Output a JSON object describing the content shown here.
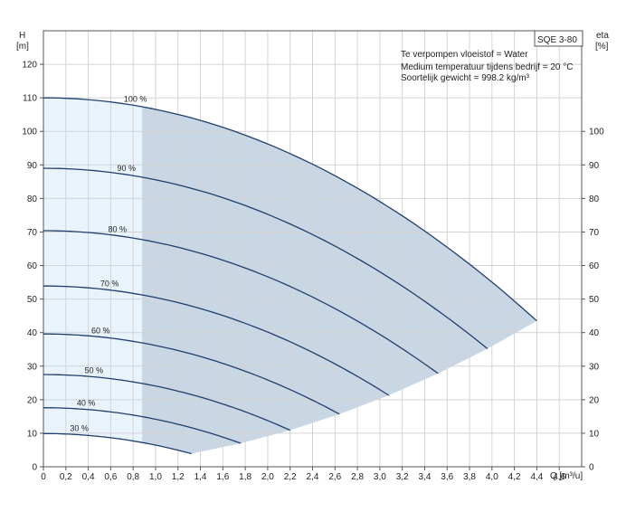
{
  "chart_data": {
    "type": "line",
    "pump_label": "SQE 3-80",
    "info_lines": [
      "Te verpompen vloeistof = Water",
      "Medium temperatuur tijdens bedrijf = 20 °C",
      "Soortelijk gewicht = 998.2 kg/m³"
    ],
    "left_axis": {
      "label_line1": "H",
      "label_line2": "[m]",
      "range": [
        0,
        130
      ],
      "ticks": [
        0,
        10,
        20,
        30,
        40,
        50,
        60,
        70,
        80,
        90,
        100,
        110,
        120
      ]
    },
    "right_axis": {
      "label_line1": "eta",
      "label_line2": "[%]",
      "ticks": [
        0,
        10,
        20,
        30,
        40,
        50,
        60,
        70,
        80,
        90,
        100
      ]
    },
    "x_axis": {
      "label": "Q [m³/u]",
      "range": [
        0,
        4.8
      ],
      "ticks": [
        0,
        0.2,
        0.4,
        0.6,
        0.8,
        1.0,
        1.2,
        1.4,
        1.6,
        1.8,
        2.0,
        2.2,
        2.4,
        2.6,
        2.8,
        3.0,
        3.2,
        3.4,
        3.6,
        3.8,
        4.0,
        4.2,
        4.4,
        4.6
      ],
      "tick_labels": [
        "0",
        "0,2",
        "0,4",
        "0,6",
        "0,8",
        "1,0",
        "1,2",
        "1,4",
        "1,6",
        "1,8",
        "2,0",
        "2,2",
        "2,4",
        "2,6",
        "2,8",
        "3,0",
        "3,2",
        "3,4",
        "3,6",
        "3,8",
        "4,0",
        "4,2",
        "4,4",
        "4,6"
      ]
    },
    "grid": true,
    "min_flow_boundary_q": 0.88,
    "series": [
      {
        "name": "100 %",
        "shutoff_head": 110,
        "end_q": 4.4,
        "end_h": 43.5,
        "label_q": 0.82
      },
      {
        "name": "90 %",
        "shutoff_head": 89,
        "end_q": 3.96,
        "end_h": 35.2,
        "label_q": 0.74
      },
      {
        "name": "80 %",
        "shutoff_head": 70.4,
        "end_q": 3.52,
        "end_h": 27.8,
        "label_q": 0.66
      },
      {
        "name": "70 %",
        "shutoff_head": 53.9,
        "end_q": 3.08,
        "end_h": 21.3,
        "label_q": 0.59
      },
      {
        "name": "60 %",
        "shutoff_head": 39.6,
        "end_q": 2.64,
        "end_h": 15.7,
        "label_q": 0.51
      },
      {
        "name": "50 %",
        "shutoff_head": 27.5,
        "end_q": 2.2,
        "end_h": 10.9,
        "label_q": 0.45
      },
      {
        "name": "40 %",
        "shutoff_head": 17.6,
        "end_q": 1.76,
        "end_h": 7.0,
        "label_q": 0.38
      },
      {
        "name": "30 %",
        "shutoff_head": 9.9,
        "end_q": 1.32,
        "end_h": 3.9,
        "label_q": 0.32
      }
    ],
    "colors": {
      "curve": "#1f3f6e",
      "region_fill": "#c9d6e3",
      "low_flow_fill": "#e9f3fc",
      "grid": "#d3d3d3",
      "axis": "#555555"
    }
  }
}
